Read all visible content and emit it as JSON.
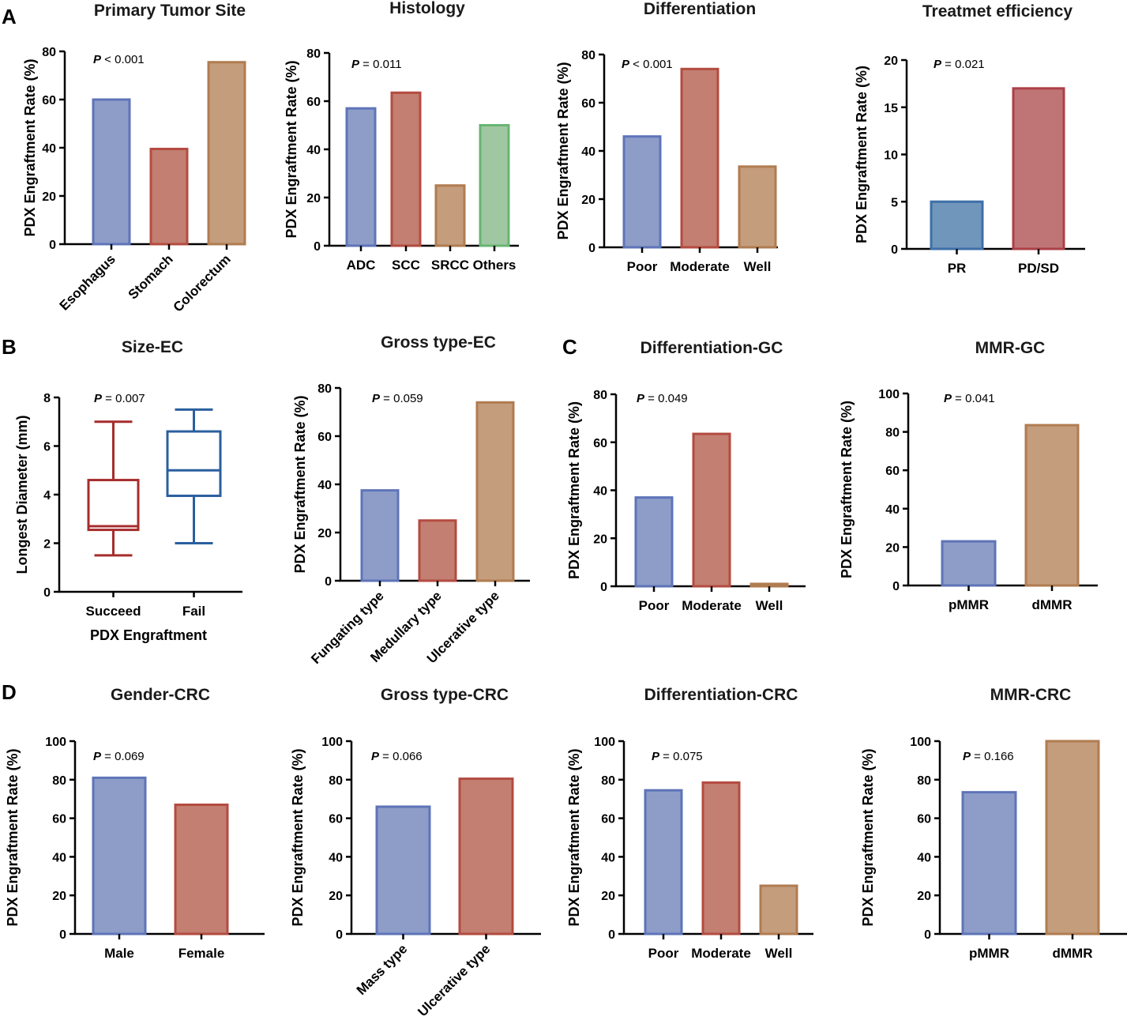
{
  "panel_labels": {
    "A": "A",
    "B": "B",
    "C": "C",
    "D": "D"
  },
  "colors": {
    "blue": "#8E9DC8",
    "blue_stroke": "#5E74B8",
    "red": "#C27F72",
    "red_stroke": "#B44B40",
    "tan": "#C49D7D",
    "tan_stroke": "#B07C50",
    "green": "#9FC7A2",
    "green_stroke": "#68B572",
    "steel": "#7196BB",
    "steel_stroke": "#3E6FA8",
    "rose": "#BF7575",
    "rose_stroke": "#AC3F48",
    "box_red": "#A72C2C",
    "box_blue": "#2A5F9E"
  },
  "chart_data": [
    {
      "id": "A1",
      "type": "bar",
      "title": "Primary Tumor Site",
      "ylabel": "PDX Engraftment Rate (%)",
      "xlabel": "",
      "ylim": [
        0,
        80
      ],
      "yticks": [
        "0",
        "20",
        "40",
        "60",
        "80"
      ],
      "categories": [
        "Esophagus",
        "Stomach",
        "Colorectum"
      ],
      "values": [
        60,
        39.5,
        75.5
      ],
      "colors": [
        "blue",
        "red",
        "tan"
      ],
      "rotate": true,
      "p_label": "P",
      "p_text": " < 0.001"
    },
    {
      "id": "A2",
      "type": "bar",
      "title": "Histology",
      "ylabel": "PDX Engraftment Rate (%)",
      "xlabel": "",
      "ylim": [
        0,
        80
      ],
      "yticks": [
        "0",
        "20",
        "40",
        "60",
        "80"
      ],
      "categories": [
        "ADC",
        "SCC",
        "SRCC",
        "Others"
      ],
      "values": [
        57,
        63.5,
        25,
        50
      ],
      "colors": [
        "blue",
        "red",
        "tan",
        "green"
      ],
      "rotate": false,
      "p_label": "P",
      "p_text": " = 0.011"
    },
    {
      "id": "A3",
      "type": "bar",
      "title": "Differentiation",
      "ylabel": "PDX Engraftment Rate (%)",
      "xlabel": "",
      "ylim": [
        0,
        80
      ],
      "yticks": [
        "0",
        "20",
        "40",
        "60",
        "80"
      ],
      "categories": [
        "Poor",
        "Moderate",
        "Well"
      ],
      "values": [
        46,
        74,
        33.5
      ],
      "colors": [
        "blue",
        "red",
        "tan"
      ],
      "rotate": false,
      "p_label": "P",
      "p_text": " < 0.001"
    },
    {
      "id": "A4",
      "type": "bar",
      "title": "Treatmet efficiency",
      "ylabel": "PDX Engraftment Rate (%)",
      "xlabel": "",
      "ylim": [
        0,
        20
      ],
      "yticks": [
        "0",
        "5",
        "10",
        "15",
        "20"
      ],
      "categories": [
        "PR",
        "PD/SD"
      ],
      "values": [
        5,
        17
      ],
      "colors": [
        "steel",
        "rose"
      ],
      "rotate": false,
      "p_label": "P",
      "p_text": " = 0.021"
    },
    {
      "id": "B1",
      "type": "box",
      "title": "Size-EC",
      "ylabel": "Longest Diameter (mm)",
      "xlabel": "PDX Engraftment",
      "ylim": [
        0,
        8
      ],
      "yticks": [
        "0",
        "2",
        "4",
        "6",
        "8"
      ],
      "categories": [
        "Succeed",
        "Fail"
      ],
      "boxes": [
        {
          "min": 1.5,
          "q1": 2.55,
          "median": 2.7,
          "q3": 4.6,
          "max": 7.0,
          "color": "box_red"
        },
        {
          "min": 2.0,
          "q1": 3.95,
          "median": 5.0,
          "q3": 6.6,
          "max": 7.5,
          "color": "box_blue"
        }
      ],
      "p_label": "P",
      "p_text": " = 0.007"
    },
    {
      "id": "B2",
      "type": "bar",
      "title": "Gross type-EC",
      "ylabel": "PDX Engraftment Rate (%)",
      "xlabel": "",
      "ylim": [
        0,
        80
      ],
      "yticks": [
        "0",
        "20",
        "40",
        "60",
        "80"
      ],
      "categories": [
        "Fungating type",
        "Medullary type",
        "Ulcerative type"
      ],
      "values": [
        37.5,
        25,
        74
      ],
      "colors": [
        "blue",
        "red",
        "tan"
      ],
      "rotate": true,
      "p_label": "P",
      "p_text": " = 0.059"
    },
    {
      "id": "C1",
      "type": "bar",
      "title": "Differentiation-GC",
      "ylabel": "PDX Engraftment Rate (%)",
      "xlabel": "",
      "ylim": [
        0,
        80
      ],
      "yticks": [
        "0",
        "20",
        "40",
        "60",
        "80"
      ],
      "categories": [
        "Poor",
        "Moderate",
        "Well"
      ],
      "values": [
        37,
        63.5,
        1
      ],
      "colors": [
        "blue",
        "red",
        "tan"
      ],
      "rotate": false,
      "p_label": "P",
      "p_text": " = 0.049"
    },
    {
      "id": "C2",
      "type": "bar",
      "title": "MMR-GC",
      "ylabel": "PDX Engraftment Rate (%)",
      "xlabel": "",
      "ylim": [
        0,
        100
      ],
      "yticks": [
        "0",
        "20",
        "40",
        "60",
        "80",
        "100"
      ],
      "categories": [
        "pMMR",
        "dMMR"
      ],
      "values": [
        23,
        83.5
      ],
      "colors": [
        "blue",
        "tan"
      ],
      "rotate": false,
      "p_label": "P",
      "p_text": " = 0.041"
    },
    {
      "id": "D1",
      "type": "bar",
      "title": "Gender-CRC",
      "ylabel": "PDX Engraftment Rate (%)",
      "xlabel": "",
      "ylim": [
        0,
        100
      ],
      "yticks": [
        "0",
        "20",
        "40",
        "60",
        "80",
        "100"
      ],
      "categories": [
        "Male",
        "Female"
      ],
      "values": [
        81,
        67
      ],
      "colors": [
        "blue",
        "red"
      ],
      "rotate": false,
      "p_label": "P",
      "p_text": " = 0.069"
    },
    {
      "id": "D2",
      "type": "bar",
      "title": "Gross type-CRC",
      "ylabel": "PDX Engraftment Rate (%)",
      "xlabel": "",
      "ylim": [
        0,
        100
      ],
      "yticks": [
        "0",
        "20",
        "40",
        "60",
        "80",
        "100"
      ],
      "categories": [
        "Mass type",
        "Ulcerative type"
      ],
      "values": [
        66,
        80.5
      ],
      "colors": [
        "blue",
        "red"
      ],
      "rotate": true,
      "p_label": "P",
      "p_text": " = 0.066"
    },
    {
      "id": "D3",
      "type": "bar",
      "title": "Differentiation-CRC",
      "ylabel": "PDX Engraftment Rate (%)",
      "xlabel": "",
      "ylim": [
        0,
        100
      ],
      "yticks": [
        "0",
        "20",
        "40",
        "60",
        "80",
        "100"
      ],
      "categories": [
        "Poor",
        "Moderate",
        "Well"
      ],
      "values": [
        74.5,
        78.5,
        25
      ],
      "colors": [
        "blue",
        "red",
        "tan"
      ],
      "rotate": false,
      "p_label": "P",
      "p_text": " = 0.075"
    },
    {
      "id": "D4",
      "type": "bar",
      "title": "MMR-CRC",
      "ylabel": "PDX Engraftment Rate (%)",
      "xlabel": "",
      "ylim": [
        0,
        100
      ],
      "yticks": [
        "0",
        "20",
        "40",
        "60",
        "80",
        "100"
      ],
      "categories": [
        "pMMR",
        "dMMR"
      ],
      "values": [
        73.5,
        100
      ],
      "colors": [
        "blue",
        "tan"
      ],
      "rotate": false,
      "p_label": "P",
      "p_text": " = 0.166"
    }
  ]
}
